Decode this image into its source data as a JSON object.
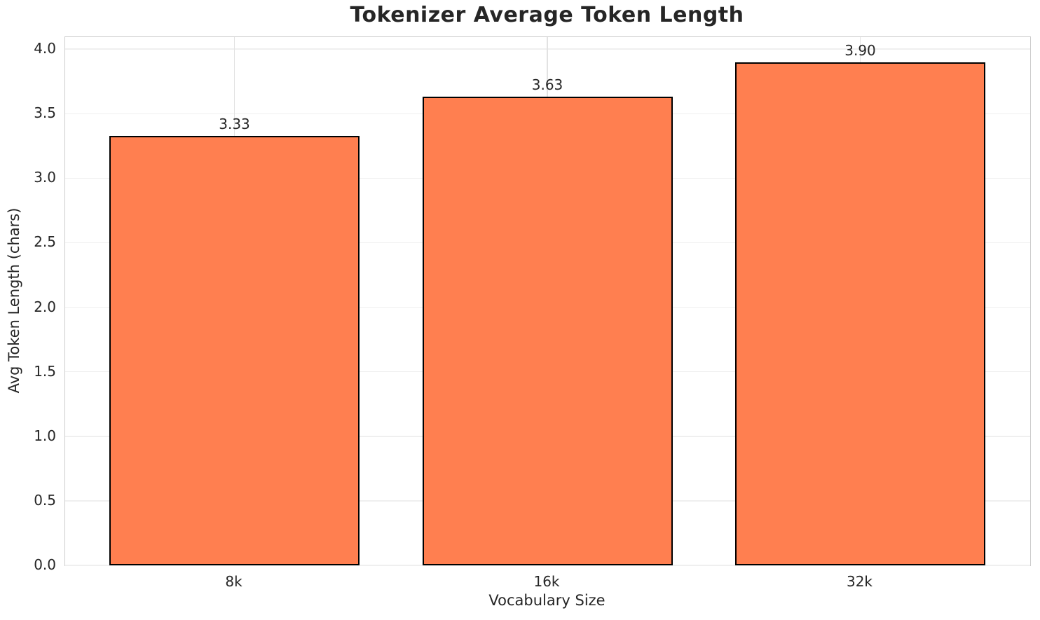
{
  "chart_data": {
    "type": "bar",
    "title": "Tokenizer Average Token Length",
    "xlabel": "Vocabulary Size",
    "ylabel": "Avg Token Length (chars)",
    "categories": [
      "8k",
      "16k",
      "32k"
    ],
    "values": [
      3.33,
      3.63,
      3.9
    ],
    "value_labels": [
      "3.33",
      "3.63",
      "3.90"
    ],
    "yticks": [
      0.0,
      0.5,
      1.0,
      1.5,
      2.0,
      2.5,
      3.0,
      3.5,
      4.0
    ],
    "ytick_labels": [
      "0.0",
      "0.5",
      "1.0",
      "1.5",
      "2.0",
      "2.5",
      "3.0",
      "3.5",
      "4.0"
    ],
    "ylim": [
      0,
      4.093
    ],
    "grid": true,
    "legend_position": "none",
    "colors": {
      "bar_fill": "#FF7F50",
      "bar_edge": "#000000",
      "grid_horizontal": "#efefef",
      "grid_vertical": "#e2e2e2",
      "spine": "#cccccc",
      "text": "#262626",
      "background": "#ffffff"
    }
  }
}
